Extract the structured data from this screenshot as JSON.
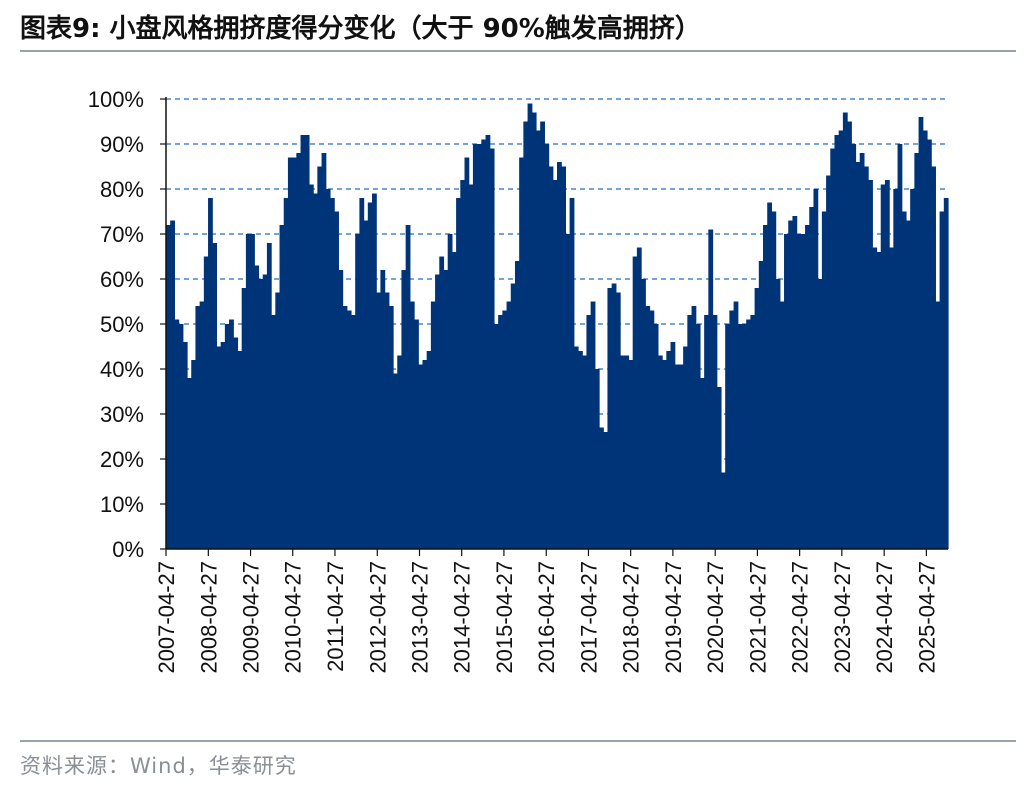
{
  "title": "图表9:  小盘风格拥挤度得分变化（大于 90%触发高拥挤）",
  "source": "资料来源：Wind，华泰研究",
  "colors": {
    "bar": "#003478",
    "grid": "#4a86c8",
    "axis": "#111111"
  },
  "chart_data": {
    "type": "bar",
    "title": "小盘风格拥挤度得分变化（大于 90%触发高拥挤）",
    "xlabel": "",
    "ylabel": "",
    "ylim": [
      0,
      100
    ],
    "y_ticks": [
      "0%",
      "10%",
      "20%",
      "30%",
      "40%",
      "50%",
      "60%",
      "70%",
      "80%",
      "90%",
      "100%"
    ],
    "x_ticks": [
      "2007-04-27",
      "2008-04-27",
      "2009-04-27",
      "2010-04-27",
      "2011-04-27",
      "2012-04-27",
      "2013-04-27",
      "2014-04-27",
      "2015-04-27",
      "2016-04-27",
      "2017-04-27",
      "2018-04-27",
      "2019-04-27",
      "2020-04-27",
      "2021-04-27",
      "2022-04-27",
      "2023-04-27",
      "2024-04-27",
      "2025-04-27"
    ],
    "grid": "horizontal dashed",
    "legend": "none",
    "x_range": [
      "2007-04-27",
      "2025-10-31"
    ],
    "series": [
      {
        "values": [
          72,
          73,
          51,
          50,
          46,
          38,
          42,
          54,
          55,
          65,
          78,
          68,
          45,
          46,
          50,
          51,
          47,
          44,
          58,
          70,
          70,
          63,
          60,
          61,
          68,
          52,
          57,
          72,
          78,
          87,
          87,
          88,
          92,
          92,
          81,
          79,
          85,
          88,
          80,
          78,
          75,
          62,
          54,
          53,
          52,
          70,
          78,
          73,
          77,
          79,
          57,
          62,
          57,
          54,
          39,
          43,
          62,
          72,
          55,
          51,
          41,
          42,
          44,
          55,
          61,
          65,
          62,
          70,
          66,
          78,
          82,
          87,
          81,
          90,
          90,
          91,
          92,
          89,
          50,
          52,
          53,
          55,
          59,
          64,
          87,
          95,
          99,
          97,
          93,
          95,
          90,
          85,
          82,
          86,
          85,
          70,
          78,
          45,
          44,
          43,
          52,
          55,
          40,
          27,
          26,
          58,
          59,
          57,
          43,
          43,
          42,
          65,
          67,
          60,
          54,
          53,
          50,
          43,
          42,
          44,
          46,
          41,
          41,
          45,
          52,
          54,
          50,
          38,
          52,
          71,
          52,
          36,
          17,
          50,
          53,
          55,
          50,
          50,
          51,
          52,
          58,
          64,
          72,
          77,
          75,
          60,
          55,
          70,
          73,
          74,
          70,
          70,
          72,
          76,
          80,
          60,
          75,
          83,
          89,
          92,
          93,
          97,
          95,
          90,
          86,
          88,
          85,
          82,
          67,
          66,
          81,
          82,
          67,
          80,
          90,
          75,
          73,
          80,
          88,
          96,
          93,
          91,
          85,
          55,
          75,
          78
        ]
      }
    ]
  }
}
